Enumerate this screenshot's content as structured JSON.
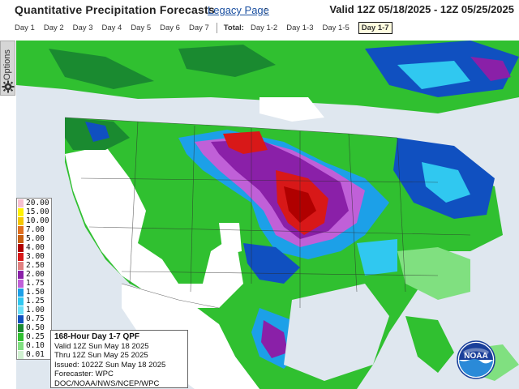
{
  "header": {
    "title": "Quantitative Precipitation Forecasts",
    "legacy_link": "Legacy Page",
    "colon": ":",
    "valid_range": "Valid 12Z 05/18/2025 - 12Z 05/25/2025"
  },
  "tabs": {
    "days": [
      "Day 1",
      "Day 2",
      "Day 3",
      "Day 4",
      "Day 5",
      "Day 6",
      "Day 7"
    ],
    "total_label": "Total:",
    "totals": [
      "Day 1-2",
      "Day 1-3",
      "Day 1-5"
    ],
    "active": "Day 1-7"
  },
  "options_label": "Options",
  "legend": {
    "values": [
      "20.00",
      "15.00",
      "10.00",
      "7.00",
      "5.00",
      "4.00",
      "3.00",
      "2.50",
      "2.00",
      "1.75",
      "1.50",
      "1.25",
      "1.00",
      "0.75",
      "0.50",
      "0.25",
      "0.10",
      "0.01"
    ],
    "colors": [
      "#f7c0d0",
      "#fff200",
      "#f5c800",
      "#e07020",
      "#c86010",
      "#b00000",
      "#d81818",
      "#e08080",
      "#8a20a8",
      "#c060d8",
      "#1ca0e8",
      "#30c8f0",
      "#6ae0f8",
      "#1050c0",
      "#1a8a30",
      "#30c030",
      "#80e080",
      "#d0f0d0"
    ]
  },
  "infobox": {
    "line1": "168-Hour Day 1-7 QPF",
    "line2": "Valid 12Z Sun May 18 2025",
    "line3": "Thru 12Z Sun May 25 2025",
    "line4": "Issued: 1022Z Sun May 18 2025",
    "line5": "Forecaster: WPC",
    "line6": "DOC/NOAA/NWS/NCEP/WPC"
  },
  "logo": {
    "text": "NOAA"
  },
  "colors": {
    "ocean": "#dfe7ef",
    "land_dry": "#ffffff",
    "link": "#1a4fa0"
  }
}
